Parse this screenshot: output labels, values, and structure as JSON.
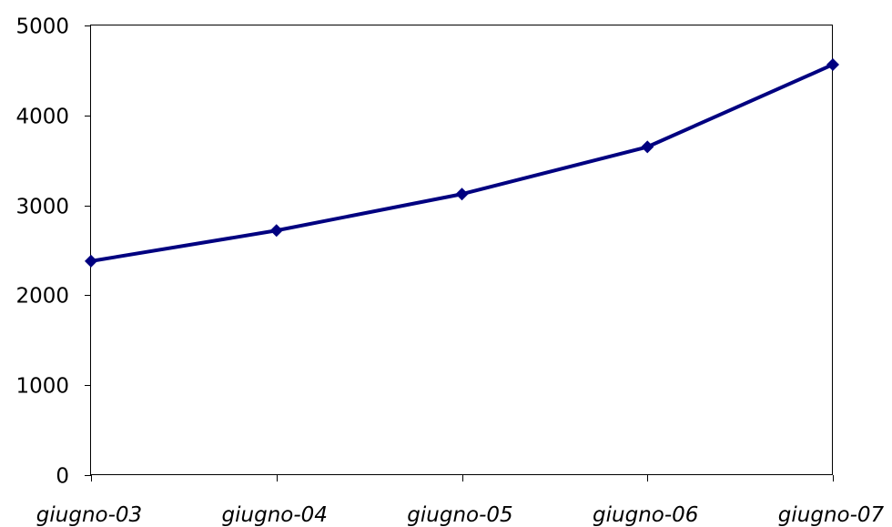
{
  "chart_data": {
    "type": "line",
    "title": "",
    "xlabel": "",
    "ylabel": "",
    "categories": [
      "giugno-03",
      "giugno-04",
      "giugno-05",
      "giugno-06",
      "giugno-07"
    ],
    "series": [
      {
        "values": [
          2380,
          2720,
          3125,
          3650,
          4565
        ]
      }
    ],
    "ylim": [
      0,
      5000
    ],
    "yticks": [
      "0",
      "1000",
      "2000",
      "3000",
      "4000",
      "5000"
    ],
    "grid": false,
    "legend": "none",
    "colors": {
      "line": "#000080",
      "axis": "#000000",
      "background": "#ffffff"
    },
    "marker": "diamond"
  }
}
